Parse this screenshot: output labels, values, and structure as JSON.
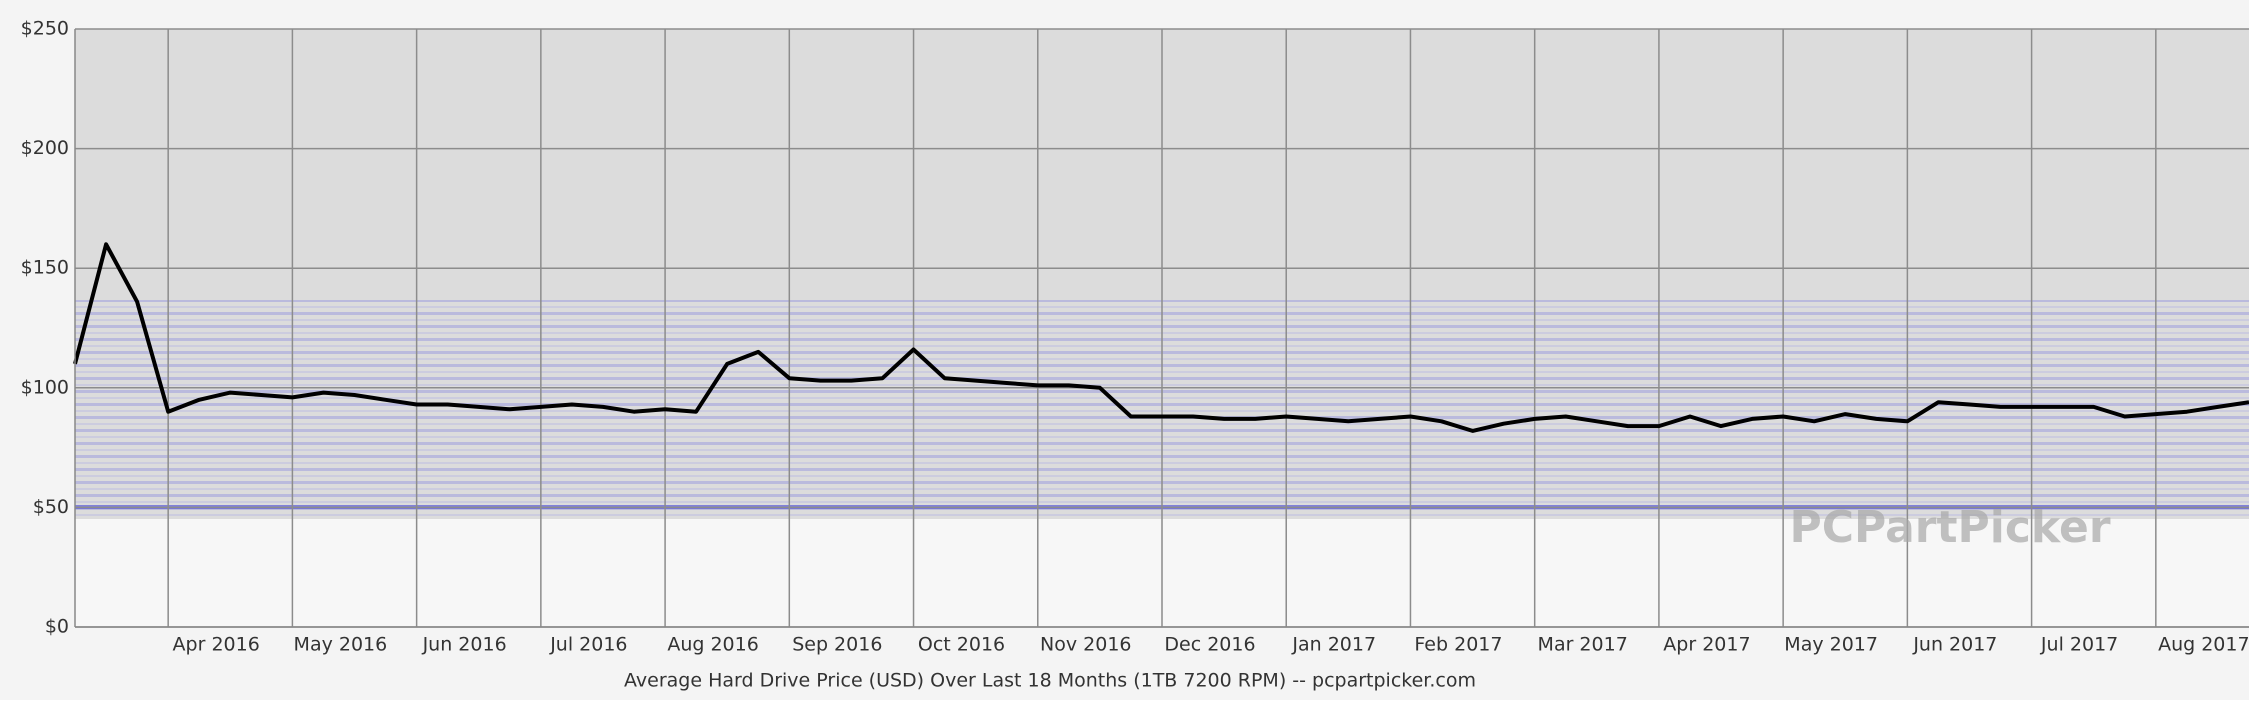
{
  "chart_data": {
    "type": "line",
    "title": "Average Hard Drive Price (USD) Over Last 18 Months (1TB 7200 RPM) -- pcpartpicker.com",
    "watermark": "PCPartPicker",
    "categories": [
      null,
      null,
      null,
      "Apr 2016",
      null,
      null,
      null,
      "May 2016",
      null,
      null,
      null,
      "Jun 2016",
      null,
      null,
      null,
      "Jul 2016",
      null,
      null,
      null,
      "Aug 2016",
      null,
      null,
      null,
      "Sep 2016",
      null,
      null,
      null,
      "Oct 2016",
      null,
      null,
      null,
      "Nov 2016",
      null,
      null,
      null,
      "Dec 2016",
      null,
      null,
      null,
      "Jan 2017",
      null,
      null,
      null,
      "Feb 2017",
      null,
      null,
      null,
      "Mar 2017",
      null,
      null,
      null,
      "Apr 2017",
      null,
      null,
      null,
      "May 2017",
      null,
      null,
      null,
      "Jun 2017",
      null,
      null,
      null,
      "Jul 2017",
      null,
      null,
      null,
      "Aug 2017",
      null,
      null,
      null
    ],
    "series": [
      {
        "name": "Average price",
        "color": "#000000",
        "values": [
          110,
          160,
          136,
          90,
          95,
          98,
          97,
          96,
          98,
          97,
          95,
          93,
          93,
          92,
          91,
          92,
          93,
          92,
          90,
          91,
          90,
          110,
          115,
          104,
          103,
          103,
          104,
          116,
          104,
          103,
          102,
          101,
          101,
          100,
          88,
          88,
          88,
          87,
          87,
          88,
          87,
          86,
          87,
          88,
          86,
          82,
          85,
          87,
          88,
          86,
          84,
          84,
          88,
          84,
          87,
          88,
          86,
          89,
          87,
          86,
          94,
          93,
          92,
          92,
          92,
          92,
          88,
          89,
          90,
          92,
          94
        ]
      }
    ],
    "ylim": [
      0,
      250
    ],
    "yticks": [
      {
        "value": 0,
        "label": "$0"
      },
      {
        "value": 50,
        "label": "$50"
      },
      {
        "value": 100,
        "label": "$100"
      },
      {
        "value": 150,
        "label": "$150"
      },
      {
        "value": 200,
        "label": "$200"
      },
      {
        "value": 250,
        "label": "$250"
      }
    ],
    "grid": true,
    "show_legend": false
  }
}
